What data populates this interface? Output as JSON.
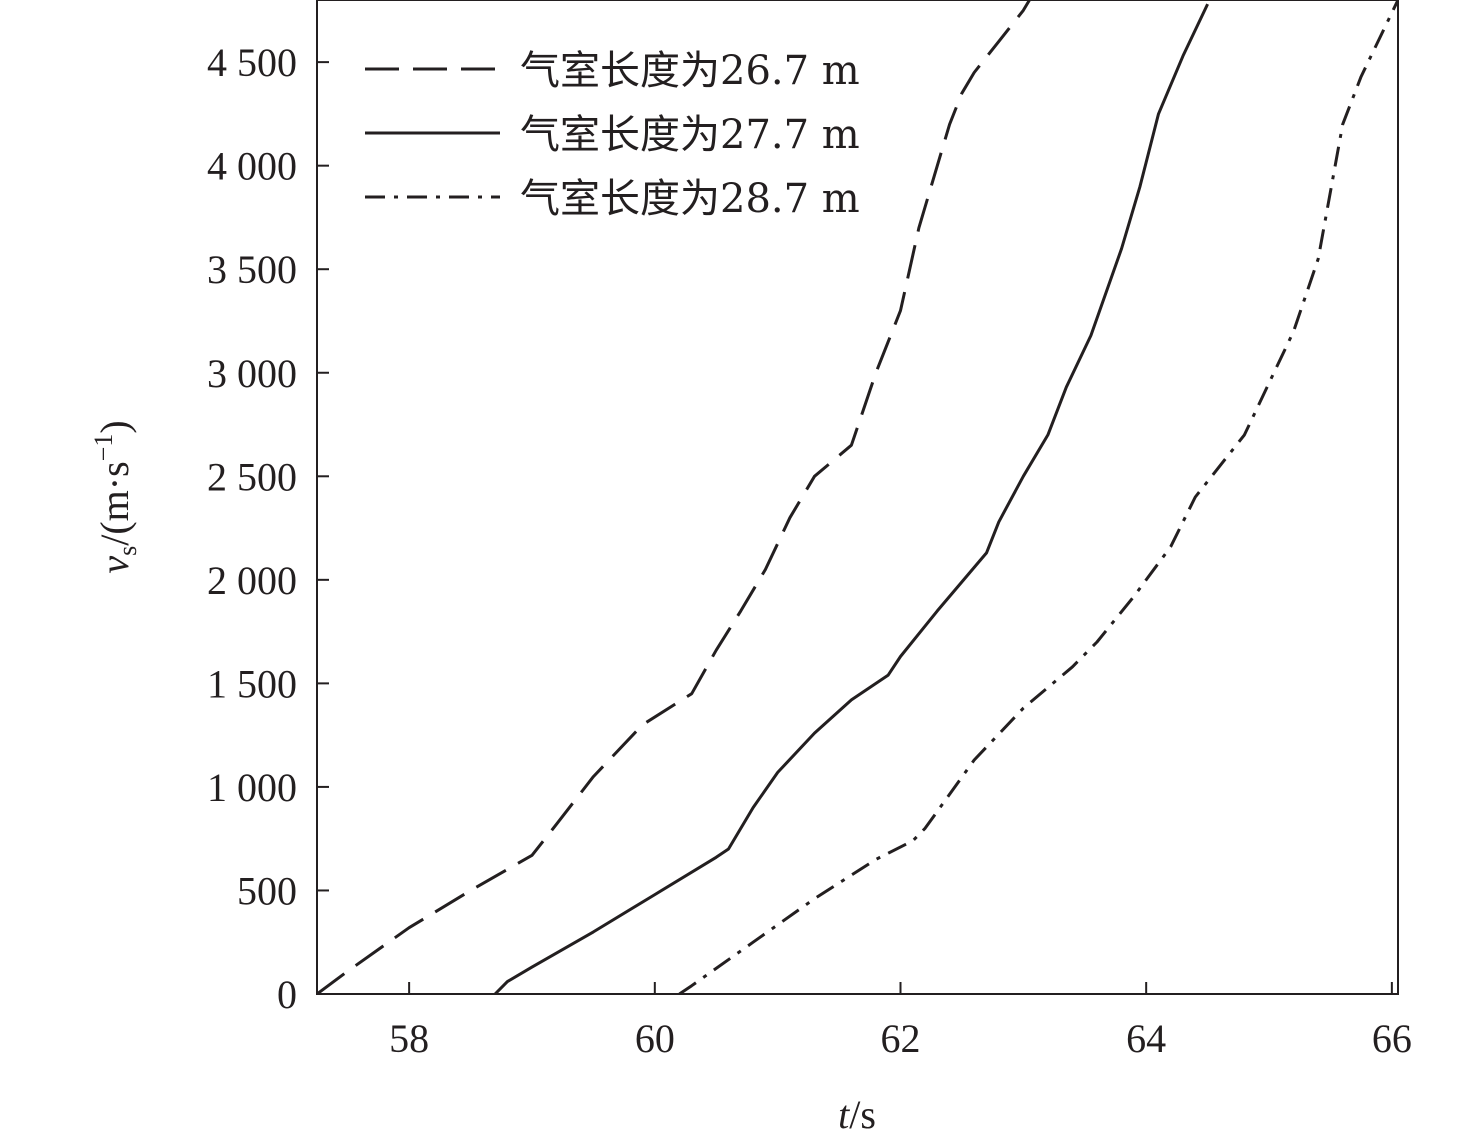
{
  "chart_data": {
    "type": "line",
    "xlabel_var": "t",
    "xlabel_unit": "/s",
    "ylabel_var": "v",
    "ylabel_sub": "s",
    "ylabel_unit_main": "/(m·s",
    "ylabel_unit_sup": "−1",
    "ylabel_unit_close": ")",
    "xlim": [
      57.25,
      66.05
    ],
    "ylim": [
      0,
      4800
    ],
    "xticks": [
      58,
      60,
      62,
      64,
      66
    ],
    "xtick_labels": [
      "58",
      "60",
      "62",
      "64",
      "66"
    ],
    "yticks": [
      0,
      500,
      1000,
      1500,
      2000,
      2500,
      3000,
      3500,
      4000,
      4500
    ],
    "ytick_labels": [
      "0",
      "500",
      "1 000",
      "1 500",
      "2 000",
      "2 500",
      "3 000",
      "3 500",
      "4 000",
      "4 500"
    ],
    "legend_position": "top-left",
    "series": [
      {
        "name": "气室长度为26.7 m",
        "style": "dashed",
        "x": [
          57.25,
          57.5,
          58.0,
          58.5,
          59.0,
          59.2,
          59.5,
          59.9,
          60.3,
          60.5,
          60.7,
          60.9,
          61.1,
          61.3,
          61.6,
          61.8,
          62.0,
          62.15,
          62.3,
          62.4,
          62.5,
          62.6,
          62.8,
          63.0,
          63.05
        ],
        "y": [
          0,
          110,
          320,
          500,
          670,
          820,
          1050,
          1300,
          1450,
          1660,
          1850,
          2050,
          2300,
          2500,
          2650,
          3000,
          3300,
          3700,
          4000,
          4200,
          4350,
          4450,
          4600,
          4750,
          4800
        ]
      },
      {
        "name": "气室长度为27.7 m",
        "style": "solid",
        "x": [
          58.7,
          58.8,
          59.0,
          59.5,
          60.0,
          60.5,
          60.6,
          60.8,
          61.0,
          61.3,
          61.6,
          61.9,
          62.0,
          62.3,
          62.7,
          62.8,
          63.0,
          63.2,
          63.35,
          63.55,
          63.8,
          63.95,
          64.1,
          64.3,
          64.5
        ],
        "y": [
          0,
          60,
          130,
          300,
          480,
          660,
          700,
          900,
          1070,
          1260,
          1420,
          1540,
          1630,
          1850,
          2130,
          2280,
          2500,
          2700,
          2930,
          3180,
          3600,
          3900,
          4250,
          4530,
          4780
        ]
      },
      {
        "name": "气室长度为28.7 m",
        "style": "dashdot",
        "x": [
          60.2,
          60.3,
          60.8,
          61.3,
          61.8,
          62.1,
          62.2,
          62.6,
          63.0,
          63.4,
          63.6,
          63.9,
          64.2,
          64.4,
          64.8,
          65.0,
          65.2,
          65.4,
          65.6,
          65.75,
          66.05
        ],
        "y": [
          0,
          40,
          250,
          460,
          650,
          740,
          800,
          1130,
          1380,
          1580,
          1700,
          1920,
          2160,
          2400,
          2700,
          2950,
          3200,
          3550,
          4200,
          4430,
          4800
        ]
      }
    ]
  }
}
